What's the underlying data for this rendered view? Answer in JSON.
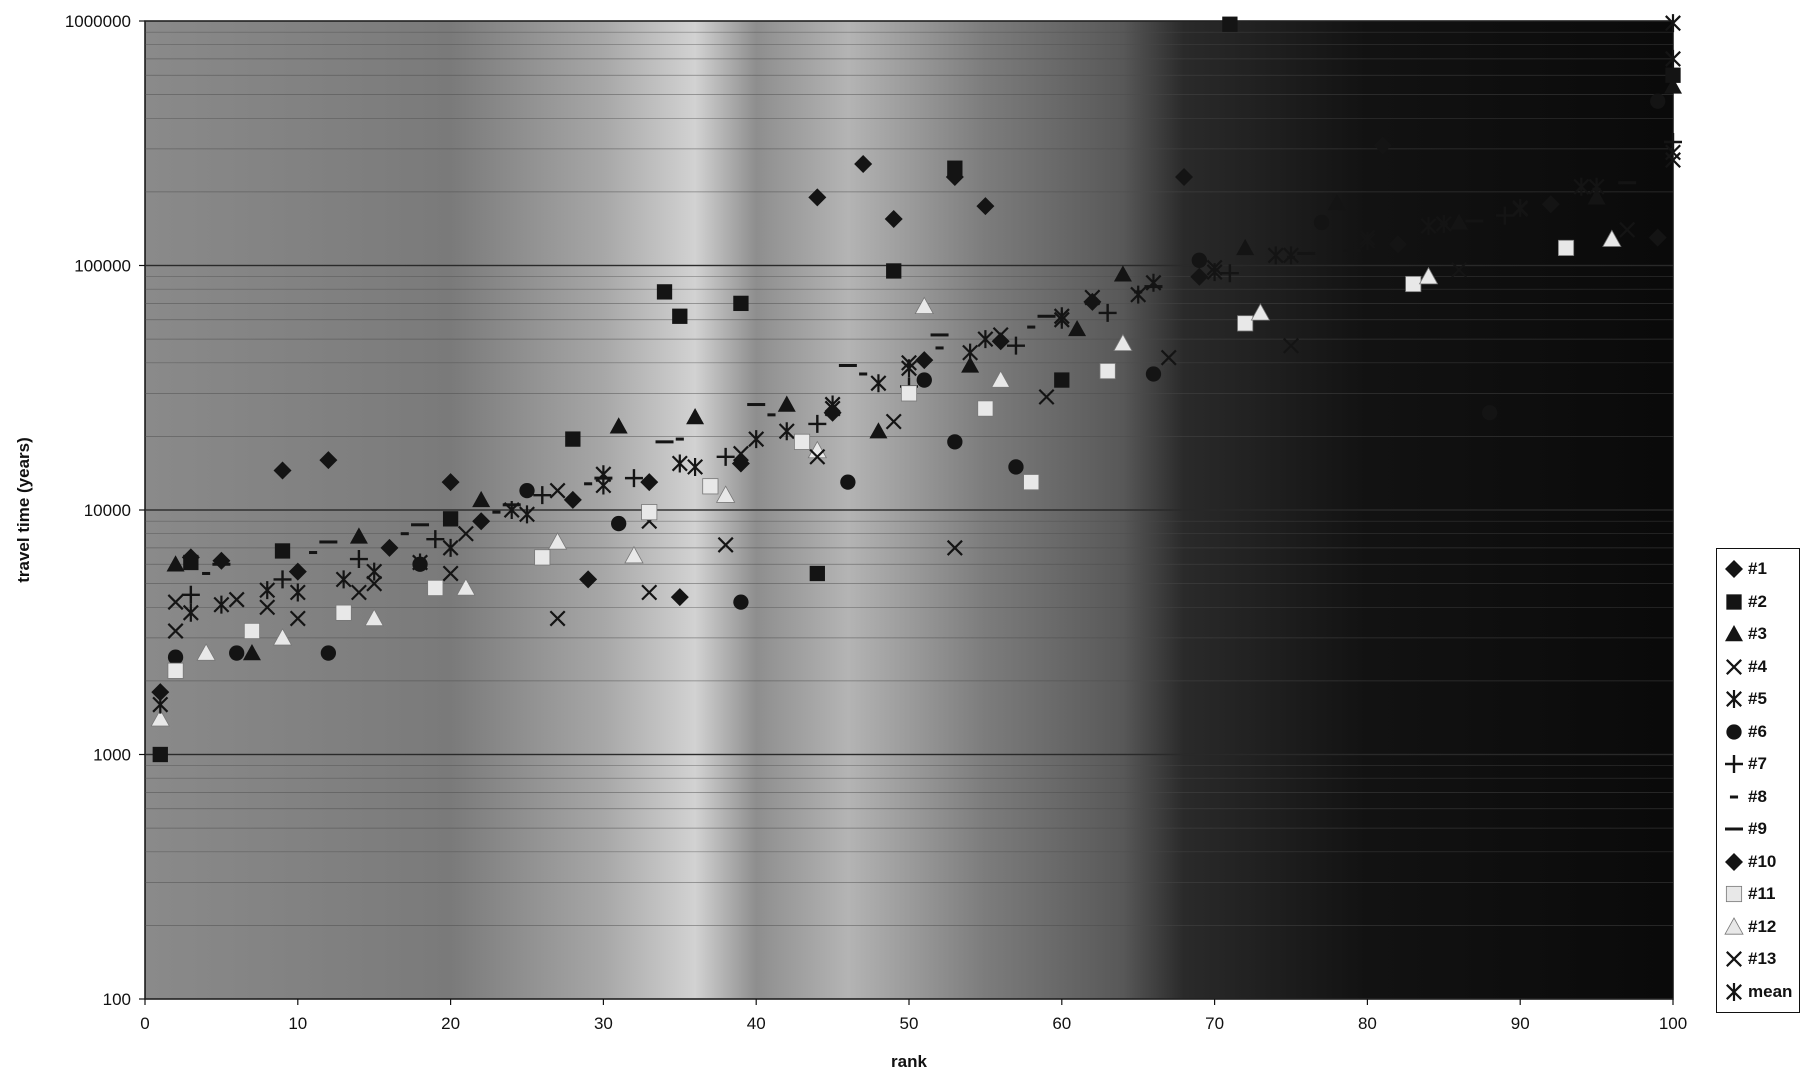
{
  "chart_data": {
    "type": "scatter",
    "xlabel": "rank",
    "ylabel": "travel time (years)",
    "x_range": [
      0,
      100
    ],
    "y_range": [
      100,
      1000000
    ],
    "y_scale": "log",
    "x_ticks": [
      "0",
      "10",
      "20",
      "30",
      "40",
      "50",
      "60",
      "70",
      "80",
      "90",
      "100"
    ],
    "y_ticks": [
      "100",
      "1000",
      "10000",
      "100000",
      "1000000"
    ],
    "grid": "horizontal minor + major",
    "legend_position": "right",
    "colors": {
      "plot_background": "#6f6f6f",
      "marker": "#141414",
      "marker_fill_hollow": "#e8e8e8"
    },
    "series": [
      {
        "name": "#1",
        "marker": "diamond",
        "points": [
          [
            1,
            1800
          ],
          [
            5,
            6200
          ],
          [
            9,
            14500
          ],
          [
            12,
            16000
          ],
          [
            20,
            13000
          ],
          [
            29,
            5200
          ],
          [
            35,
            4400
          ],
          [
            44,
            190000
          ],
          [
            47,
            260000
          ],
          [
            49,
            155000
          ],
          [
            53,
            230000
          ],
          [
            55,
            175000
          ],
          [
            68,
            230000
          ],
          [
            81,
            310000
          ],
          [
            99,
            130000
          ]
        ]
      },
      {
        "name": "#2",
        "marker": "square",
        "points": [
          [
            1,
            1000
          ],
          [
            3,
            6100
          ],
          [
            9,
            6800
          ],
          [
            20,
            9200
          ],
          [
            28,
            19500
          ],
          [
            34,
            78000
          ],
          [
            35,
            62000
          ],
          [
            39,
            70000
          ],
          [
            44,
            5500
          ],
          [
            49,
            95000
          ],
          [
            53,
            250000
          ],
          [
            60,
            34000
          ],
          [
            71,
            970000
          ],
          [
            100,
            600000
          ]
        ]
      },
      {
        "name": "#3",
        "marker": "triangle",
        "points": [
          [
            2,
            6000
          ],
          [
            7,
            2600
          ],
          [
            14,
            7800
          ],
          [
            22,
            11000
          ],
          [
            31,
            22000
          ],
          [
            36,
            24000
          ],
          [
            42,
            27000
          ],
          [
            48,
            21000
          ],
          [
            54,
            39000
          ],
          [
            61,
            55000
          ],
          [
            64,
            92000
          ],
          [
            72,
            118000
          ],
          [
            78,
            180000
          ],
          [
            86,
            150000
          ],
          [
            95,
            190000
          ],
          [
            100,
            540000
          ]
        ]
      },
      {
        "name": "#4",
        "marker": "x",
        "points": [
          [
            2,
            3200
          ],
          [
            6,
            4300
          ],
          [
            10,
            3600
          ],
          [
            15,
            5000
          ],
          [
            21,
            8000
          ],
          [
            27,
            12000
          ],
          [
            33,
            9000
          ],
          [
            39,
            17000
          ],
          [
            45,
            26000
          ],
          [
            50,
            40000
          ],
          [
            56,
            52000
          ],
          [
            62,
            74000
          ],
          [
            70,
            98000
          ],
          [
            80,
            130000
          ],
          [
            90,
            170000
          ],
          [
            100,
            270000
          ]
        ]
      },
      {
        "name": "#5",
        "marker": "asterisk",
        "points": [
          [
            3,
            3800
          ],
          [
            8,
            4700
          ],
          [
            13,
            5200
          ],
          [
            18,
            6100
          ],
          [
            24,
            10000
          ],
          [
            30,
            14000
          ],
          [
            36,
            15000
          ],
          [
            42,
            21000
          ],
          [
            48,
            33000
          ],
          [
            54,
            44000
          ],
          [
            60,
            60000
          ],
          [
            66,
            85000
          ],
          [
            74,
            110000
          ],
          [
            84,
            145000
          ],
          [
            94,
            210000
          ],
          [
            100,
            700000
          ]
        ]
      },
      {
        "name": "#6",
        "marker": "circle",
        "points": [
          [
            2,
            2500
          ],
          [
            6,
            2600
          ],
          [
            12,
            2600
          ],
          [
            18,
            6000
          ],
          [
            25,
            12000
          ],
          [
            31,
            8800
          ],
          [
            39,
            4200
          ],
          [
            46,
            13000
          ],
          [
            51,
            34000
          ],
          [
            53,
            19000
          ],
          [
            57,
            15000
          ],
          [
            66,
            36000
          ],
          [
            69,
            105000
          ],
          [
            77,
            150000
          ],
          [
            88,
            25000
          ],
          [
            99,
            470000
          ]
        ]
      },
      {
        "name": "#7",
        "marker": "plus",
        "points": [
          [
            3,
            4500
          ],
          [
            9,
            5200
          ],
          [
            14,
            6300
          ],
          [
            19,
            7600
          ],
          [
            26,
            11500
          ],
          [
            32,
            13500
          ],
          [
            38,
            16500
          ],
          [
            44,
            22500
          ],
          [
            50,
            32000
          ],
          [
            57,
            47000
          ],
          [
            63,
            64000
          ],
          [
            71,
            93000
          ],
          [
            79,
            115000
          ],
          [
            89,
            160000
          ],
          [
            100,
            320000
          ]
        ]
      },
      {
        "name": "#8",
        "marker": "dash",
        "points": [
          [
            4,
            5500
          ],
          [
            11,
            6700
          ],
          [
            17,
            8000
          ],
          [
            23,
            9800
          ],
          [
            29,
            12800
          ],
          [
            35,
            19500
          ],
          [
            41,
            24500
          ],
          [
            47,
            36000
          ],
          [
            52,
            46000
          ],
          [
            58,
            56000
          ],
          [
            65,
            78000
          ],
          [
            75,
            108000
          ],
          [
            85,
            148000
          ],
          [
            95,
            205000
          ]
        ]
      },
      {
        "name": "#9",
        "marker": "longdash",
        "points": [
          [
            5,
            6000
          ],
          [
            12,
            7400
          ],
          [
            18,
            8700
          ],
          [
            24,
            10500
          ],
          [
            30,
            13500
          ],
          [
            34,
            19000
          ],
          [
            40,
            27000
          ],
          [
            46,
            39000
          ],
          [
            52,
            52000
          ],
          [
            59,
            62000
          ],
          [
            66,
            82000
          ],
          [
            76,
            112000
          ],
          [
            87,
            152000
          ],
          [
            97,
            218000
          ]
        ]
      },
      {
        "name": "#10",
        "marker": "diamond",
        "points": [
          [
            3,
            6400
          ],
          [
            10,
            5600
          ],
          [
            16,
            7000
          ],
          [
            22,
            9000
          ],
          [
            28,
            11000
          ],
          [
            33,
            13000
          ],
          [
            39,
            15500
          ],
          [
            45,
            25000
          ],
          [
            51,
            41000
          ],
          [
            56,
            49000
          ],
          [
            62,
            71000
          ],
          [
            69,
            90000
          ],
          [
            82,
            122000
          ],
          [
            92,
            178000
          ]
        ]
      },
      {
        "name": "#11",
        "marker": "square-light",
        "points": [
          [
            2,
            2200
          ],
          [
            7,
            3200
          ],
          [
            13,
            3800
          ],
          [
            19,
            4800
          ],
          [
            26,
            6400
          ],
          [
            33,
            9800
          ],
          [
            37,
            12500
          ],
          [
            43,
            19000
          ],
          [
            50,
            30000
          ],
          [
            55,
            26000
          ],
          [
            58,
            13000
          ],
          [
            63,
            37000
          ],
          [
            72,
            58000
          ],
          [
            83,
            84000
          ],
          [
            93,
            118000
          ]
        ]
      },
      {
        "name": "#12",
        "marker": "triangle-light",
        "points": [
          [
            1,
            1400
          ],
          [
            4,
            2600
          ],
          [
            9,
            3000
          ],
          [
            15,
            3600
          ],
          [
            21,
            4800
          ],
          [
            27,
            7400
          ],
          [
            32,
            6500
          ],
          [
            38,
            11500
          ],
          [
            44,
            17500
          ],
          [
            51,
            68000
          ],
          [
            56,
            34000
          ],
          [
            64,
            48000
          ],
          [
            73,
            64000
          ],
          [
            84,
            90000
          ],
          [
            96,
            128000
          ]
        ]
      },
      {
        "name": "#13",
        "marker": "x",
        "points": [
          [
            2,
            4200
          ],
          [
            8,
            4000
          ],
          [
            14,
            4600
          ],
          [
            20,
            5500
          ],
          [
            27,
            3600
          ],
          [
            33,
            4600
          ],
          [
            38,
            7200
          ],
          [
            44,
            16500
          ],
          [
            49,
            23000
          ],
          [
            53,
            7000
          ],
          [
            59,
            29000
          ],
          [
            67,
            42000
          ],
          [
            75,
            47000
          ],
          [
            86,
            96000
          ],
          [
            97,
            140000
          ],
          [
            100,
            290000
          ]
        ]
      },
      {
        "name": "mean",
        "marker": "asterisk",
        "points": [
          [
            1,
            1600
          ],
          [
            5,
            4100
          ],
          [
            10,
            4600
          ],
          [
            15,
            5600
          ],
          [
            20,
            7000
          ],
          [
            25,
            9600
          ],
          [
            30,
            12600
          ],
          [
            35,
            15500
          ],
          [
            40,
            19500
          ],
          [
            45,
            27000
          ],
          [
            50,
            38000
          ],
          [
            55,
            50000
          ],
          [
            60,
            62000
          ],
          [
            65,
            76000
          ],
          [
            70,
            94000
          ],
          [
            75,
            110000
          ],
          [
            80,
            126000
          ],
          [
            85,
            148000
          ],
          [
            90,
            172000
          ],
          [
            95,
            210000
          ],
          [
            100,
            980000
          ]
        ]
      }
    ]
  }
}
